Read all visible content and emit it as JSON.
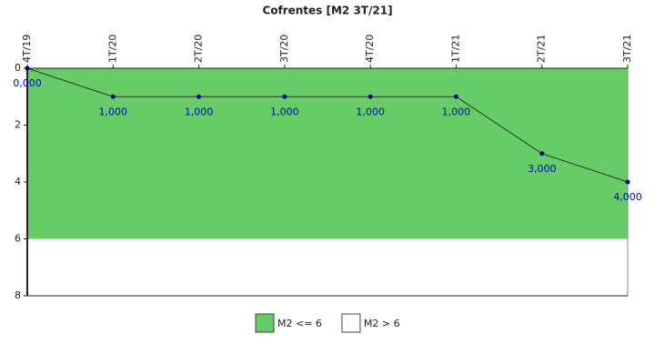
{
  "chart_data": {
    "type": "line",
    "title": "Cofrentes [M2 3T/21]",
    "categories": [
      "4T/19",
      "1T/20",
      "2T/20",
      "3T/20",
      "4T/20",
      "1T/21",
      "2T/21",
      "3T/21"
    ],
    "series": [
      {
        "name": "M2",
        "color": "#333333",
        "marker_color": "#000099",
        "label_color": "#0000cc",
        "values": [
          0,
          1,
          1,
          1,
          1,
          1,
          3,
          4
        ],
        "value_labels": [
          "0,000",
          "1,000",
          "1,000",
          "1,000",
          "1,000",
          "1,000",
          "3,000",
          "4,000"
        ]
      }
    ],
    "bands": [
      {
        "name": "M2 <= 6",
        "color": "#66cc66",
        "from": 0,
        "to": 6
      },
      {
        "name": "M2 > 6",
        "color": "#ffffff",
        "from": 6,
        "to": 8
      }
    ],
    "ylim": [
      0,
      8
    ],
    "y_reversed": true,
    "yticks": [
      0,
      2,
      4,
      6,
      8
    ]
  }
}
